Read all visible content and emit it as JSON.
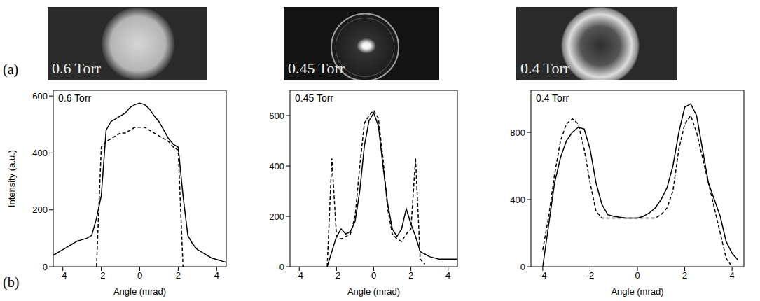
{
  "panel_labels": [
    "(a)",
    "(b)"
  ],
  "images": [
    {
      "label": "0.6 Torr"
    },
    {
      "label": "0.45 Torr"
    },
    {
      "label": "0.4 Torr"
    }
  ],
  "chart_data": [
    {
      "type": "line",
      "title": "0.6 Torr",
      "x_label": "Angle (mrad)",
      "y_label": "Intensity (a.u.)",
      "x": [
        -4.5,
        -4.25,
        -4,
        -3.75,
        -3.5,
        -3.25,
        -3,
        -2.75,
        -2.5,
        -2.25,
        -2,
        -1.75,
        -1.5,
        -1.25,
        -1,
        -0.75,
        -0.5,
        -0.25,
        0,
        0.25,
        0.5,
        0.75,
        1,
        1.25,
        1.5,
        1.75,
        2,
        2.25,
        2.5,
        2.75,
        3,
        3.25,
        3.5,
        3.75,
        4,
        4.25,
        4.5
      ],
      "xlim": [
        -4.5,
        4.5
      ],
      "xticks": [
        -4,
        -2,
        0,
        2,
        4
      ],
      "ylim": [
        0,
        620
      ],
      "yticks": [
        0,
        200,
        400,
        600
      ],
      "series": [
        {
          "color": "#000000",
          "line_style": "solid",
          "values": [
            40,
            50,
            60,
            70,
            80,
            90,
            95,
            100,
            110,
            170,
            250,
            480,
            510,
            520,
            530,
            540,
            560,
            570,
            575,
            570,
            555,
            530,
            510,
            480,
            450,
            430,
            420,
            250,
            110,
            80,
            60,
            50,
            40,
            30,
            25,
            20,
            15
          ]
        },
        {
          "color": "#000000",
          "line_style": "dashed",
          "values": [
            null,
            null,
            null,
            null,
            null,
            null,
            null,
            null,
            null,
            0,
            420,
            440,
            450,
            460,
            470,
            470,
            480,
            490,
            490,
            490,
            480,
            470,
            460,
            450,
            440,
            420,
            410,
            0,
            null,
            null,
            null,
            null,
            null,
            null,
            null,
            null,
            null
          ]
        }
      ]
    },
    {
      "type": "line",
      "title": "0.45 Torr",
      "x_label": "Angle (mrad)",
      "x": [
        -4.5,
        -4.25,
        -4,
        -3.75,
        -3.5,
        -3.25,
        -3,
        -2.75,
        -2.5,
        -2.25,
        -2,
        -1.75,
        -1.5,
        -1.25,
        -1,
        -0.75,
        -0.5,
        -0.25,
        0,
        0.25,
        0.5,
        0.75,
        1,
        1.25,
        1.5,
        1.75,
        2,
        2.25,
        2.5,
        2.75,
        3,
        3.25,
        3.5,
        3.75,
        4,
        4.25,
        4.5
      ],
      "xlim": [
        -4.5,
        4.5
      ],
      "xticks": [
        -4,
        -2,
        0,
        2,
        4
      ],
      "ylim": [
        0,
        700
      ],
      "yticks": [
        0,
        200,
        400,
        600
      ],
      "series": [
        {
          "color": "#000000",
          "line_style": "solid",
          "values": [
            null,
            null,
            null,
            null,
            null,
            null,
            null,
            null,
            0,
            60,
            120,
            150,
            130,
            140,
            180,
            300,
            480,
            580,
            610,
            560,
            400,
            250,
            150,
            120,
            150,
            230,
            170,
            120,
            60,
            50,
            40,
            35,
            30,
            30,
            30,
            30,
            30
          ]
        },
        {
          "color": "#000000",
          "line_style": "dashed",
          "values": [
            null,
            null,
            null,
            null,
            null,
            null,
            null,
            null,
            0,
            430,
            120,
            110,
            120,
            130,
            200,
            400,
            570,
            600,
            620,
            590,
            430,
            230,
            130,
            110,
            100,
            130,
            150,
            430,
            30,
            10,
            null,
            null,
            null,
            null,
            null,
            null,
            null
          ]
        }
      ]
    },
    {
      "type": "line",
      "title": "0.4 Torr",
      "x_label": "Angle (mrad)",
      "x": [
        -4.5,
        -4.25,
        -4,
        -3.75,
        -3.5,
        -3.25,
        -3,
        -2.75,
        -2.5,
        -2.25,
        -2,
        -1.75,
        -1.5,
        -1.25,
        -1,
        -0.75,
        -0.5,
        -0.25,
        0,
        0.25,
        0.5,
        0.75,
        1,
        1.25,
        1.5,
        1.75,
        2,
        2.25,
        2.5,
        2.75,
        3,
        3.25,
        3.5,
        3.75,
        4,
        4.25,
        4.5
      ],
      "xlim": [
        -4.5,
        4.5
      ],
      "xticks": [
        -4,
        -2,
        0,
        2,
        4
      ],
      "ylim": [
        0,
        1050
      ],
      "yticks": [
        0,
        400,
        800
      ],
      "series": [
        {
          "color": "#000000",
          "line_style": "solid",
          "values": [
            null,
            null,
            0,
            250,
            500,
            650,
            750,
            800,
            830,
            820,
            700,
            500,
            370,
            310,
            300,
            295,
            290,
            290,
            290,
            300,
            320,
            350,
            400,
            470,
            600,
            800,
            950,
            970,
            900,
            700,
            500,
            400,
            300,
            150,
            80,
            40,
            null
          ]
        },
        {
          "color": "#000000",
          "line_style": "dashed",
          "values": [
            null,
            null,
            100,
            300,
            550,
            750,
            850,
            880,
            850,
            700,
            500,
            330,
            290,
            290,
            290,
            290,
            290,
            290,
            290,
            290,
            290,
            290,
            310,
            350,
            450,
            700,
            850,
            900,
            800,
            650,
            500,
            350,
            200,
            50,
            0,
            null,
            null
          ]
        }
      ]
    }
  ]
}
